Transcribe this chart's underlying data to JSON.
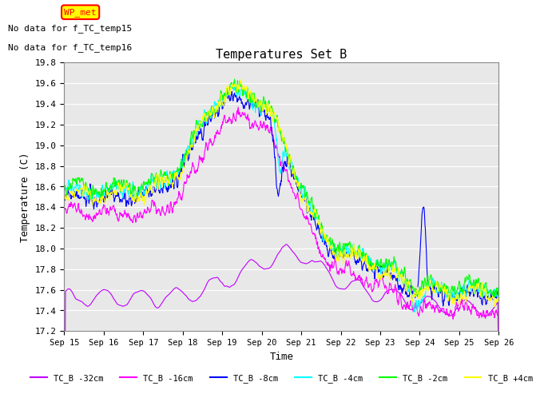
{
  "title": "Temperatures Set B",
  "xlabel": "Time",
  "ylabel": "Temperature (C)",
  "ylim": [
    17.2,
    19.8
  ],
  "yticks": [
    17.2,
    17.4,
    17.6,
    17.8,
    18.0,
    18.2,
    18.4,
    18.6,
    18.8,
    19.0,
    19.2,
    19.4,
    19.6,
    19.8
  ],
  "series_labels": [
    "TC_B -32cm",
    "TC_B -16cm",
    "TC_B -8cm",
    "TC_B -4cm",
    "TC_B -2cm",
    "TC_B +4cm"
  ],
  "series_colors": [
    "#bf00ff",
    "#ff00ff",
    "#0000ff",
    "#00ffff",
    "#00ff00",
    "#ffff00"
  ],
  "x_start": 0,
  "x_end": 264,
  "notes": [
    "No data for f_TC_temp15",
    "No data for f_TC_temp16"
  ],
  "wp_met_color": "#ff0000",
  "wp_met_bg": "#ffff00",
  "background_color": "#ffffff",
  "grid_color": "#cccccc",
  "xtick_labels": [
    "Sep 15",
    "Sep 16",
    "Sep 17",
    "Sep 18",
    "Sep 19",
    "Sep 20",
    "Sep 21",
    "Sep 22",
    "Sep 23",
    "Sep 24",
    "Sep 25",
    "Sep 26"
  ],
  "xtick_positions": [
    0,
    24,
    48,
    72,
    96,
    120,
    144,
    168,
    192,
    216,
    240,
    264
  ]
}
